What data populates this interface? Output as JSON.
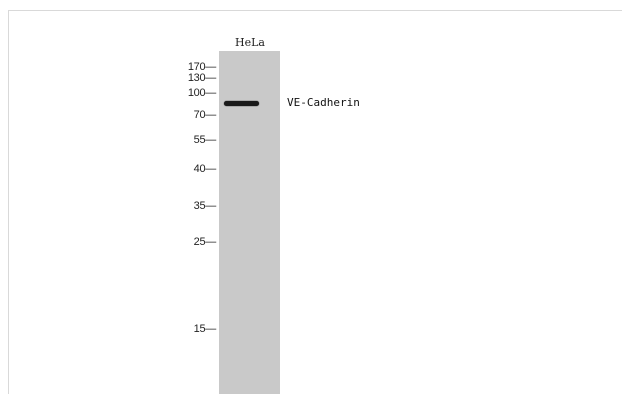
{
  "lane": {
    "label": "HeLa"
  },
  "band": {
    "label": "VE-Cadherin"
  },
  "markers": [
    {
      "label": "170"
    },
    {
      "label": "130"
    },
    {
      "label": "100"
    },
    {
      "label": "70"
    },
    {
      "label": "55"
    },
    {
      "label": "40"
    },
    {
      "label": "35"
    },
    {
      "label": "25"
    },
    {
      "label": "15"
    }
  ],
  "colors": {
    "lane": "#c9c9c9",
    "band": "#1a1a1a",
    "frame": "#d9d9d9"
  }
}
